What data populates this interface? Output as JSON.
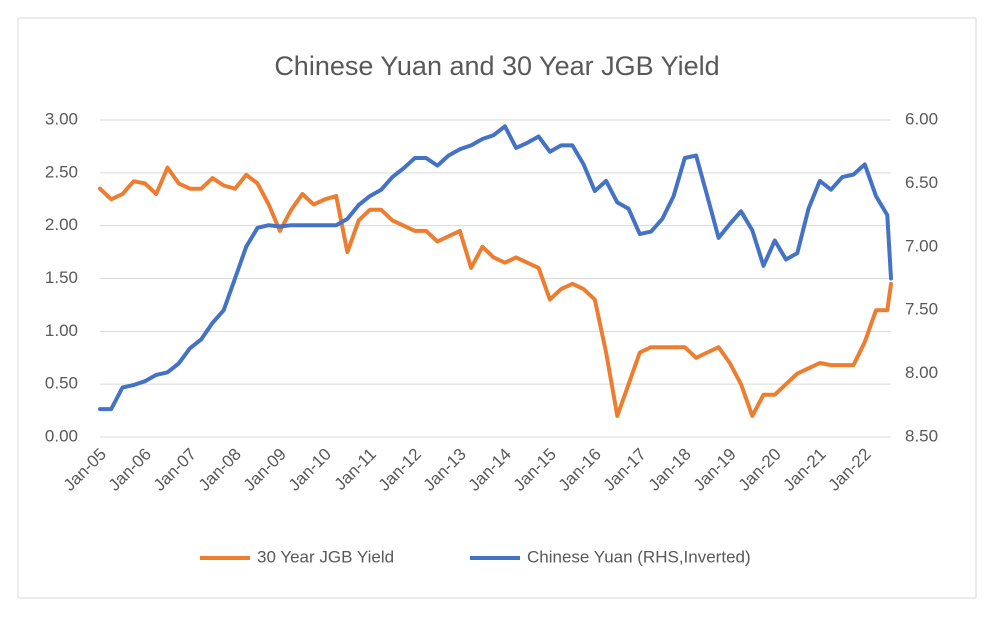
{
  "chart_data": {
    "type": "line",
    "title": "Chinese Yuan and 30 Year JGB Yield",
    "x": [
      "2005-01",
      "2005-04",
      "2005-07",
      "2005-10",
      "2006-01",
      "2006-04",
      "2006-07",
      "2006-10",
      "2007-01",
      "2007-04",
      "2007-07",
      "2007-10",
      "2008-01",
      "2008-04",
      "2008-07",
      "2008-10",
      "2009-01",
      "2009-04",
      "2009-07",
      "2009-10",
      "2010-01",
      "2010-04",
      "2010-07",
      "2010-10",
      "2011-01",
      "2011-04",
      "2011-07",
      "2011-10",
      "2012-01",
      "2012-04",
      "2012-07",
      "2012-10",
      "2013-01",
      "2013-04",
      "2013-07",
      "2013-10",
      "2014-01",
      "2014-04",
      "2014-07",
      "2014-10",
      "2015-01",
      "2015-04",
      "2015-07",
      "2015-10",
      "2016-01",
      "2016-04",
      "2016-07",
      "2016-10",
      "2017-01",
      "2017-04",
      "2017-07",
      "2017-10",
      "2018-01",
      "2018-04",
      "2018-07",
      "2018-10",
      "2019-01",
      "2019-04",
      "2019-07",
      "2019-10",
      "2020-01",
      "2020-04",
      "2020-07",
      "2020-10",
      "2021-01",
      "2021-04",
      "2021-07",
      "2021-10",
      "2022-01",
      "2022-04",
      "2022-07",
      "2022-08"
    ],
    "series": [
      {
        "name": "30 Year JGB Yield",
        "color": "#ed7d31",
        "axis": "y",
        "values": [
          2.35,
          2.25,
          2.3,
          2.42,
          2.4,
          2.3,
          2.55,
          2.4,
          2.35,
          2.35,
          2.45,
          2.38,
          2.35,
          2.48,
          2.4,
          2.2,
          1.95,
          2.15,
          2.3,
          2.2,
          2.25,
          2.28,
          1.75,
          2.05,
          2.15,
          2.15,
          2.05,
          2.0,
          1.95,
          1.95,
          1.85,
          1.9,
          1.95,
          1.6,
          1.8,
          1.7,
          1.65,
          1.7,
          1.65,
          1.6,
          1.3,
          1.4,
          1.45,
          1.4,
          1.3,
          0.8,
          0.2,
          0.5,
          0.8,
          0.85,
          0.85,
          0.85,
          0.85,
          0.75,
          0.8,
          0.85,
          0.7,
          0.5,
          0.2,
          0.4,
          0.4,
          0.5,
          0.6,
          0.65,
          0.7,
          0.68,
          0.68,
          0.68,
          0.9,
          1.2,
          1.2,
          1.45
        ]
      },
      {
        "name": "Chinese Yuan (RHS,Inverted)",
        "color": "#4472c4",
        "axis": "y2",
        "values": [
          8.28,
          8.28,
          8.11,
          8.09,
          8.06,
          8.01,
          7.99,
          7.92,
          7.8,
          7.73,
          7.6,
          7.5,
          7.25,
          7.0,
          6.85,
          6.83,
          6.84,
          6.83,
          6.83,
          6.83,
          6.83,
          6.83,
          6.78,
          6.67,
          6.6,
          6.55,
          6.45,
          6.38,
          6.3,
          6.3,
          6.36,
          6.28,
          6.23,
          6.2,
          6.15,
          6.12,
          6.05,
          6.22,
          6.18,
          6.13,
          6.25,
          6.2,
          6.2,
          6.35,
          6.56,
          6.48,
          6.65,
          6.7,
          6.9,
          6.88,
          6.78,
          6.6,
          6.3,
          6.28,
          6.6,
          6.93,
          6.82,
          6.72,
          6.87,
          7.15,
          6.95,
          7.1,
          7.05,
          6.7,
          6.48,
          6.55,
          6.45,
          6.43,
          6.35,
          6.6,
          6.75,
          7.25
        ]
      }
    ],
    "xlim": [
      "2005-01",
      "2022-08"
    ],
    "xticks": [
      {
        "value": "2005-01",
        "label": "Jan-05"
      },
      {
        "value": "2006-01",
        "label": "Jan-06"
      },
      {
        "value": "2007-01",
        "label": "Jan-07"
      },
      {
        "value": "2008-01",
        "label": "Jan-08"
      },
      {
        "value": "2009-01",
        "label": "Jan-09"
      },
      {
        "value": "2010-01",
        "label": "Jan-10"
      },
      {
        "value": "2011-01",
        "label": "Jan-11"
      },
      {
        "value": "2012-01",
        "label": "Jan-12"
      },
      {
        "value": "2013-01",
        "label": "Jan-13"
      },
      {
        "value": "2014-01",
        "label": "Jan-14"
      },
      {
        "value": "2015-01",
        "label": "Jan-15"
      },
      {
        "value": "2016-01",
        "label": "Jan-16"
      },
      {
        "value": "2017-01",
        "label": "Jan-17"
      },
      {
        "value": "2018-01",
        "label": "Jan-18"
      },
      {
        "value": "2019-01",
        "label": "Jan-19"
      },
      {
        "value": "2020-01",
        "label": "Jan-20"
      },
      {
        "value": "2021-01",
        "label": "Jan-21"
      },
      {
        "value": "2022-01",
        "label": "Jan-22"
      }
    ],
    "ylim": [
      0,
      3
    ],
    "yticks": [
      {
        "value": 0,
        "label": "0.00"
      },
      {
        "value": 0.5,
        "label": "0.50"
      },
      {
        "value": 1,
        "label": "1.00"
      },
      {
        "value": 1.5,
        "label": "1.50"
      },
      {
        "value": 2,
        "label": "2.00"
      },
      {
        "value": 2.5,
        "label": "2.50"
      },
      {
        "value": 3,
        "label": "3.00"
      }
    ],
    "y2lim": [
      8.5,
      6
    ],
    "y2ticks": [
      {
        "value": 8.5,
        "label": "8.50"
      },
      {
        "value": 8,
        "label": "8.00"
      },
      {
        "value": 7.5,
        "label": "7.50"
      },
      {
        "value": 7,
        "label": "7.00"
      },
      {
        "value": 6.5,
        "label": "6.50"
      },
      {
        "value": 6,
        "label": "6.00"
      }
    ],
    "grid": true,
    "legend": "bottom"
  }
}
